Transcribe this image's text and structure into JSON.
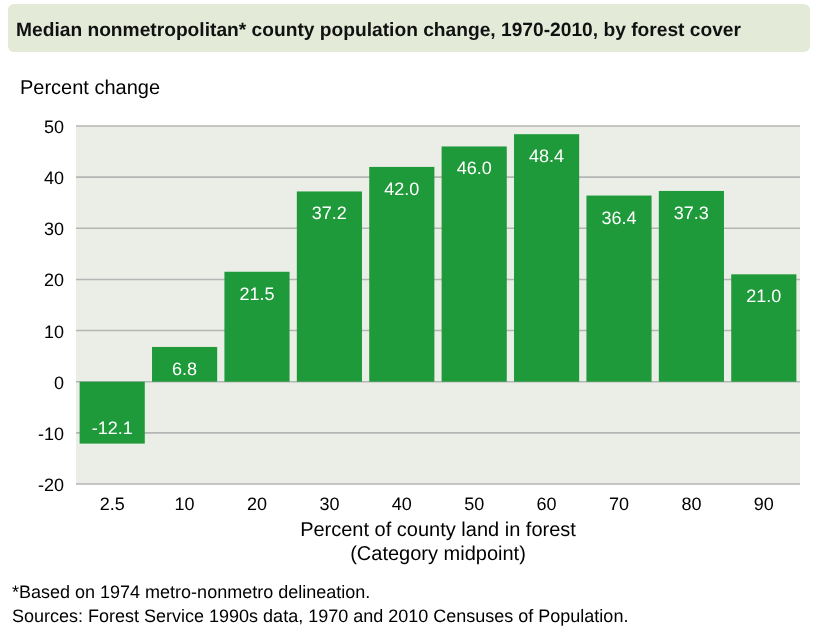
{
  "chart_data": {
    "type": "bar",
    "title": "Median nonmetropolitan* county population change, 1970-2010, by forest cover",
    "ylabel": "Percent change",
    "xlabel": "Percent of county land in forest\n(Category midpoint)",
    "categories": [
      "2.5",
      "10",
      "20",
      "30",
      "40",
      "50",
      "60",
      "70",
      "80",
      "90"
    ],
    "values": [
      -12.1,
      6.8,
      21.5,
      37.2,
      42.0,
      46.0,
      48.4,
      36.4,
      37.3,
      21.0
    ],
    "value_labels": [
      "-12.1",
      "6.8",
      "21.5",
      "37.2",
      "42.0",
      "46.0",
      "48.4",
      "36.4",
      "37.3",
      "21.0"
    ],
    "color": "#1f9a3a",
    "ylim": [
      -20,
      50
    ],
    "yticks": [
      -20,
      -10,
      0,
      10,
      20,
      30,
      40,
      50
    ],
    "grid": "y",
    "annotations": [
      "*Based on 1974 metro-nonmetro delineation.",
      "Sources: Forest Service 1990s data, 1970 and 2010 Censuses of Population."
    ]
  }
}
